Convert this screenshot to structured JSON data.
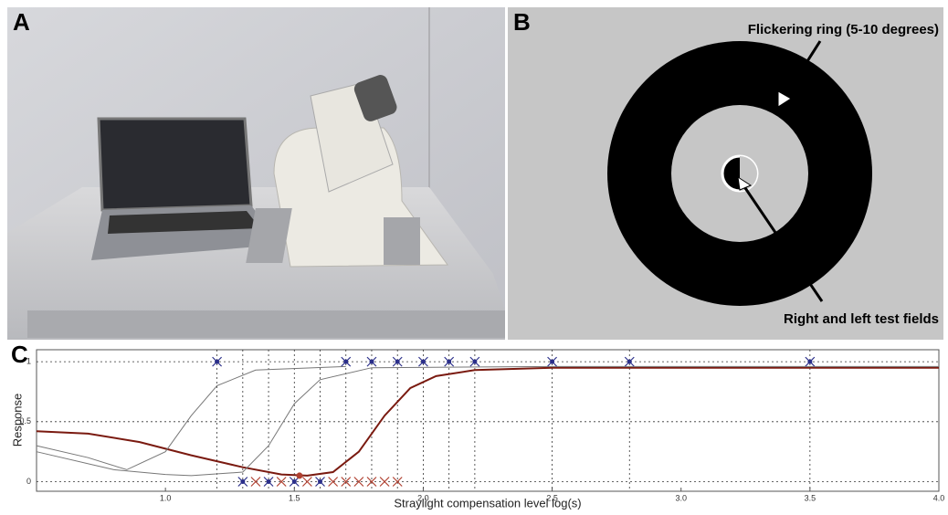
{
  "panels": {
    "a": {
      "letter": "A"
    },
    "b": {
      "letter": "B",
      "ring_label": "Flickering ring (5-10 degrees)",
      "center_label": "Right and left test fields"
    },
    "c": {
      "letter": "C"
    }
  },
  "chart_data": {
    "type": "line",
    "xlabel": "Straylight compensation level log(s)",
    "ylabel": "Response",
    "xlim": [
      0.5,
      4.0
    ],
    "ylim": [
      -0.08,
      1.1
    ],
    "xticks": [
      {
        "value": 1.0,
        "label": "1.0"
      },
      {
        "value": 1.5,
        "label": "1.5"
      },
      {
        "value": 2.0,
        "label": "2.0"
      },
      {
        "value": 2.5,
        "label": "2.5"
      },
      {
        "value": 3.0,
        "label": "3.0"
      },
      {
        "value": 3.5,
        "label": "3.5"
      },
      {
        "value": 4.0,
        "label": "4.0"
      }
    ],
    "yticks": [
      0,
      0.5,
      1
    ],
    "grid": true,
    "series": [
      {
        "color": "#7a1a10",
        "x": [
          0.5,
          0.7,
          0.9,
          1.1,
          1.3,
          1.45,
          1.55,
          1.65,
          1.75,
          1.85,
          1.95,
          2.05,
          2.2,
          2.5,
          4.0
        ],
        "values": [
          0.42,
          0.4,
          0.33,
          0.22,
          0.12,
          0.06,
          0.05,
          0.08,
          0.25,
          0.55,
          0.78,
          0.88,
          0.93,
          0.95,
          0.95
        ]
      },
      {
        "color": "#777777",
        "x": [
          0.5,
          0.8,
          1.0,
          1.1,
          1.3,
          1.4,
          1.5,
          1.6,
          1.8,
          2.5,
          4.0
        ],
        "values": [
          0.25,
          0.1,
          0.06,
          0.05,
          0.08,
          0.3,
          0.65,
          0.85,
          0.95,
          0.96,
          0.96
        ]
      },
      {
        "color": "#777777",
        "x": [
          0.5,
          0.7,
          0.85,
          1.0,
          1.1,
          1.2,
          1.35,
          1.7
        ],
        "values": [
          0.3,
          0.2,
          0.1,
          0.25,
          0.55,
          0.8,
          0.93,
          0.96
        ]
      }
    ],
    "responses": [
      {
        "color": "#2b2f8a",
        "x": [
          1.2,
          1.7,
          1.8,
          1.9,
          2.0,
          2.1,
          2.2,
          2.5,
          2.8,
          3.5,
          1.3,
          1.4,
          1.5,
          1.6
        ],
        "values": [
          1,
          1,
          1,
          1,
          1,
          1,
          1,
          1,
          1,
          1,
          0,
          0,
          0,
          0
        ]
      },
      {
        "color": "#b04030",
        "x": [
          1.35,
          1.45,
          1.55,
          1.65,
          1.7,
          1.75,
          1.8,
          1.85,
          1.9
        ],
        "values": [
          0,
          0,
          0,
          0,
          0,
          0,
          0,
          0,
          0
        ]
      }
    ],
    "estimate": {
      "color": "#b04030",
      "x": 1.52,
      "value": 0.05
    }
  }
}
